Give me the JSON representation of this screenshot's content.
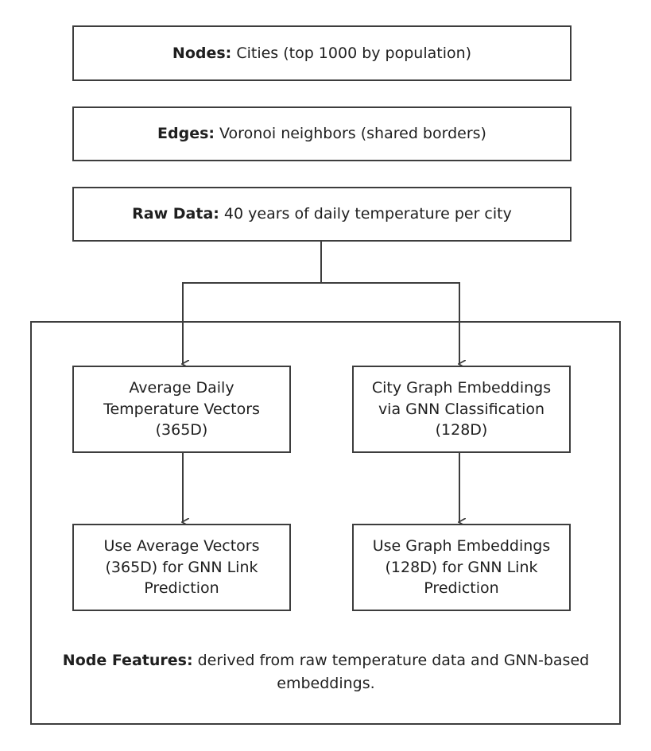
{
  "nodes_box": {
    "label": "Nodes:",
    "text": " Cities (top 1000 by population)"
  },
  "edges_box": {
    "label": "Edges:",
    "text": " Voronoi neighbors (shared borders)"
  },
  "raw_box": {
    "label": "Raw Data:",
    "text": " 40 years of daily temperature per city"
  },
  "avg_box": {
    "text": "Average Daily Temperature Vectors (365D)"
  },
  "embed_box": {
    "text": "City Graph Embeddings via GNN Classification (128D)"
  },
  "use_avg_box": {
    "text": "Use Average Vectors (365D) for GNN Link Prediction"
  },
  "use_embed_box": {
    "text": "Use Graph Embeddings (128D) for GNN Link Prediction"
  },
  "footer": {
    "label": "Node Features:",
    "text": " derived from raw temperature data and GNN-based embeddings."
  },
  "colors": {
    "stroke": "#3d3d3d",
    "text": "#1f1f1f"
  }
}
